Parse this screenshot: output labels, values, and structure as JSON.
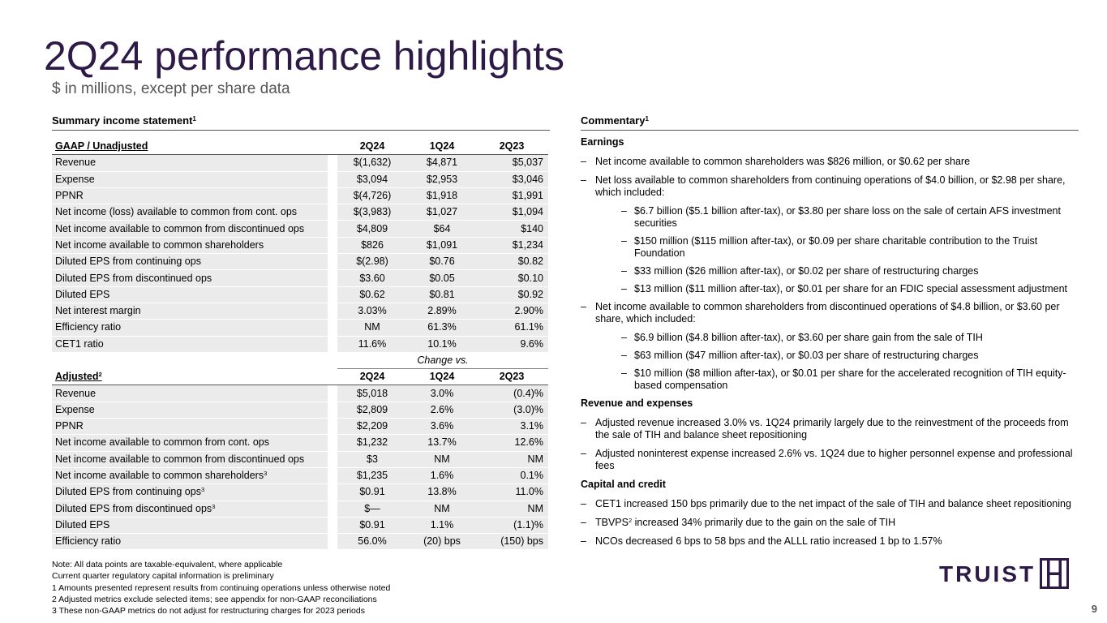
{
  "title": "2Q24 performance highlights",
  "subtitle": "$ in millions, except per share data",
  "summary_heading": "Summary income statement",
  "summary_heading_sup": "1",
  "commentary_heading": "Commentary",
  "commentary_heading_sup": "1",
  "gaap_table": {
    "header": {
      "label": "GAAP / Unadjusted",
      "cols": [
        "2Q24",
        "1Q24",
        "2Q23"
      ]
    },
    "rows": [
      {
        "label": "Revenue",
        "v": [
          "$(1,632)",
          "$4,871",
          "$5,037"
        ]
      },
      {
        "label": "Expense",
        "v": [
          "$3,094",
          "$2,953",
          "$3,046"
        ]
      },
      {
        "label": "PPNR",
        "v": [
          "$(4,726)",
          "$1,918",
          "$1,991"
        ]
      },
      {
        "label": "Net income (loss) available to common from cont. ops",
        "v": [
          "$(3,983)",
          "$1,027",
          "$1,094"
        ]
      },
      {
        "label": "Net income available to common from discontinued ops",
        "v": [
          "$4,809",
          "$64",
          "$140"
        ]
      },
      {
        "label": "Net income available to common shareholders",
        "v": [
          "$826",
          "$1,091",
          "$1,234"
        ]
      },
      {
        "label": "Diluted EPS from continuing ops",
        "v": [
          "$(2.98)",
          "$0.76",
          "$0.82"
        ]
      },
      {
        "label": "Diluted EPS from discontinued ops",
        "v": [
          "$3.60",
          "$0.05",
          "$0.10"
        ]
      },
      {
        "label": "Diluted EPS",
        "v": [
          "$0.62",
          "$0.81",
          "$0.92"
        ]
      },
      {
        "label": "Net interest margin",
        "v": [
          "3.03%",
          "2.89%",
          "2.90%"
        ]
      },
      {
        "label": "Efficiency ratio",
        "v": [
          "NM",
          "61.3%",
          "61.1%"
        ]
      },
      {
        "label": "CET1 ratio",
        "v": [
          "11.6%",
          "10.1%",
          "9.6%"
        ]
      }
    ]
  },
  "change_vs": "Change vs.",
  "adjusted_table": {
    "header": {
      "label": "Adjusted",
      "sup": "2",
      "cols": [
        "2Q24",
        "1Q24",
        "2Q23"
      ]
    },
    "rows": [
      {
        "label": "Revenue",
        "sup": "",
        "v": [
          "$5,018",
          "3.0%",
          "(0.4)%"
        ]
      },
      {
        "label": "Expense",
        "sup": "",
        "v": [
          "$2,809",
          "2.6%",
          "(3.0)%"
        ]
      },
      {
        "label": "PPNR",
        "sup": "",
        "v": [
          "$2,209",
          "3.6%",
          "3.1%"
        ]
      },
      {
        "label": "Net income available to common from cont. ops",
        "sup": "",
        "v": [
          "$1,232",
          "13.7%",
          "12.6%"
        ]
      },
      {
        "label": "Net income available to common from discontinued ops",
        "sup": "",
        "v": [
          "$3",
          "NM",
          "NM"
        ]
      },
      {
        "label": "Net income available to common shareholders",
        "sup": "3",
        "v": [
          "$1,235",
          "1.6%",
          "0.1%"
        ]
      },
      {
        "label": "Diluted EPS from continuing ops",
        "sup": "3",
        "v": [
          "$0.91",
          "13.8%",
          "11.0%"
        ]
      },
      {
        "label": "Diluted EPS from discontinued ops",
        "sup": "3",
        "v": [
          "$—",
          "NM",
          "NM"
        ]
      },
      {
        "label": "Diluted EPS",
        "sup": "",
        "v": [
          "$0.91",
          "1.1%",
          "(1.1)%"
        ]
      },
      {
        "label": "Efficiency ratio",
        "sup": "",
        "v": [
          "56.0%",
          "(20) bps",
          "(150) bps"
        ]
      }
    ]
  },
  "notes": [
    "Note: All data points are taxable-equivalent, where applicable",
    "Current quarter regulatory capital information is preliminary",
    "1  Amounts presented represent results from continuing operations unless otherwise noted",
    "2  Adjusted metrics exclude selected items; see appendix for non-GAAP reconciliations",
    "3  These non-GAAP metrics do not adjust for restructuring charges for 2023 periods"
  ],
  "commentary": {
    "earnings_head": "Earnings",
    "e1": "Net income available to common shareholders was $826 million, or $0.62 per share",
    "e2": "Net loss available to common shareholders from continuing operations of $4.0 billion, or $2.98 per share, which included:",
    "e2a": "$6.7 billion ($5.1 billion after-tax), or $3.80 per share loss on the sale of certain AFS investment securities",
    "e2b": "$150 million ($115 million after-tax), or $0.09 per share charitable contribution to the Truist Foundation",
    "e2c": "$33 million ($26 million after-tax), or $0.02 per share of restructuring charges",
    "e2d": "$13 million ($11 million after-tax), or $0.01 per share for an FDIC special assessment adjustment",
    "e3": "Net income available to common shareholders from discontinued operations of $4.8 billion, or $3.60 per share, which included:",
    "e3a": "$6.9 billion ($4.8 billion after-tax), or $3.60 per share gain from the sale of TIH",
    "e3b": "$63 million ($47 million after-tax), or $0.03 per share of restructuring charges",
    "e3c": "$10 million ($8 million after-tax), or $0.01 per share for the accelerated recognition of TIH equity-based compensation",
    "rev_head": "Revenue and expenses",
    "r1": "Adjusted revenue increased 3.0% vs. 1Q24 primarily largely due to the reinvestment of the proceeds from the sale of TIH and balance sheet repositioning",
    "r2": "Adjusted noninterest expense increased 2.6% vs. 1Q24 due to higher personnel expense and professional fees",
    "cap_head": "Capital and credit",
    "c1": "CET1 increased 150 bps primarily due to the net impact of the sale of TIH and balance sheet repositioning",
    "c2_pre": "TBVPS",
    "c2_sup": "2",
    "c2_post": " increased 34% primarily due to the gain on the sale of TIH",
    "c3": "NCOs decreased 6 bps to 58 bps and the ALLL ratio increased 1 bp to 1.57%",
    "dash": "–"
  },
  "logo_text": "TRUIST",
  "logo_icon": "truist-mark-icon",
  "page_number": "9",
  "colors": {
    "brand": "#2e1a47",
    "row_bg": "#ebebeb"
  }
}
